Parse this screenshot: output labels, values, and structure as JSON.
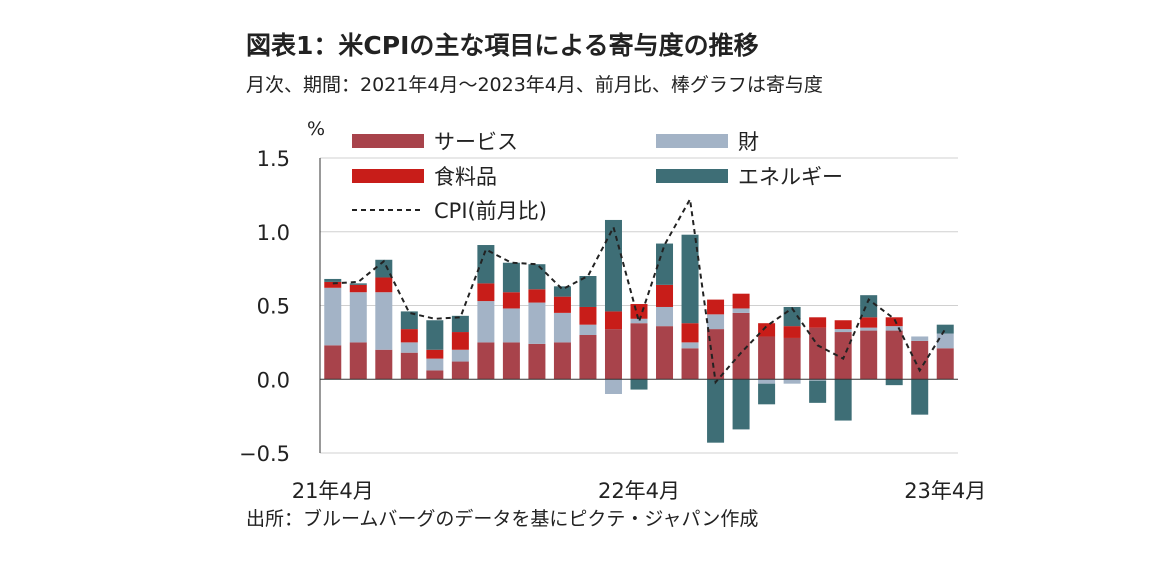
{
  "header": {
    "title": "図表1：米CPIの主な項目による寄与度の推移",
    "subtitle": "月次、期間：2021年4月～2023年4月、前月比、棒グラフは寄与度"
  },
  "footer": {
    "source": "出所：ブルームバーグのデータを基にピクテ・ジャパン作成"
  },
  "chart_data": {
    "type": "bar",
    "stacked": true,
    "unit": "%",
    "x": [
      "2021-04",
      "2021-05",
      "2021-06",
      "2021-07",
      "2021-08",
      "2021-09",
      "2021-10",
      "2021-11",
      "2021-12",
      "2022-01",
      "2022-02",
      "2022-03",
      "2022-04",
      "2022-05",
      "2022-06",
      "2022-07",
      "2022-08",
      "2022-09",
      "2022-10",
      "2022-11",
      "2022-12",
      "2023-01",
      "2023-02",
      "2023-03",
      "2023-04"
    ],
    "xtick_labels": [
      {
        "x": "2021-04",
        "label": "21年4月"
      },
      {
        "x": "2022-04",
        "label": "22年4月"
      },
      {
        "x": "2023-04",
        "label": "23年4月"
      }
    ],
    "ylim": [
      -0.5,
      1.5
    ],
    "yticks": [
      "1.5",
      "1.0",
      "0.5",
      "0.0",
      "−0.5"
    ],
    "ytick_values": [
      1.5,
      1.0,
      0.5,
      0.0,
      -0.5
    ],
    "series": [
      {
        "name": "サービス",
        "color": "#a8434b",
        "values": [
          0.23,
          0.25,
          0.2,
          0.18,
          0.06,
          0.12,
          0.25,
          0.25,
          0.24,
          0.25,
          0.3,
          0.34,
          0.38,
          0.36,
          0.21,
          0.34,
          0.45,
          0.29,
          0.28,
          0.35,
          0.32,
          0.33,
          0.33,
          0.26,
          0.21
        ]
      },
      {
        "name": "財",
        "color": "#a3b3c6",
        "values": [
          0.39,
          0.34,
          0.39,
          0.07,
          0.08,
          0.08,
          0.28,
          0.23,
          0.28,
          0.2,
          0.07,
          -0.1,
          0.03,
          0.13,
          0.04,
          0.1,
          0.03,
          -0.03,
          -0.03,
          -0.01,
          0.02,
          0.02,
          0.03,
          0.03,
          0.1
        ]
      },
      {
        "name": "食料品",
        "color": "#c81d19",
        "values": [
          0.04,
          0.05,
          0.1,
          0.09,
          0.06,
          0.12,
          0.12,
          0.11,
          0.09,
          0.11,
          0.12,
          0.12,
          0.1,
          0.15,
          0.13,
          0.1,
          0.1,
          0.09,
          0.08,
          0.07,
          0.06,
          0.07,
          0.06,
          0.0,
          0.0
        ]
      },
      {
        "name": "エネルギー",
        "color": "#3e6e76",
        "values": [
          0.02,
          0.01,
          0.12,
          0.12,
          0.2,
          0.11,
          0.26,
          0.2,
          0.17,
          0.07,
          0.21,
          0.62,
          -0.07,
          0.28,
          0.6,
          -0.43,
          -0.34,
          -0.14,
          0.13,
          -0.15,
          -0.28,
          0.15,
          -0.04,
          -0.24,
          0.06
        ]
      },
      {
        "name": "CPI(前月比)",
        "type": "line",
        "style": "dashed",
        "color": "#222222",
        "values": [
          0.65,
          0.66,
          0.8,
          0.45,
          0.41,
          0.42,
          0.88,
          0.79,
          0.78,
          0.61,
          0.7,
          1.03,
          0.39,
          0.91,
          1.22,
          -0.02,
          0.18,
          0.36,
          0.48,
          0.23,
          0.14,
          0.54,
          0.41,
          0.06,
          0.34
        ]
      }
    ],
    "legend": "top",
    "grid": "horizontal"
  }
}
